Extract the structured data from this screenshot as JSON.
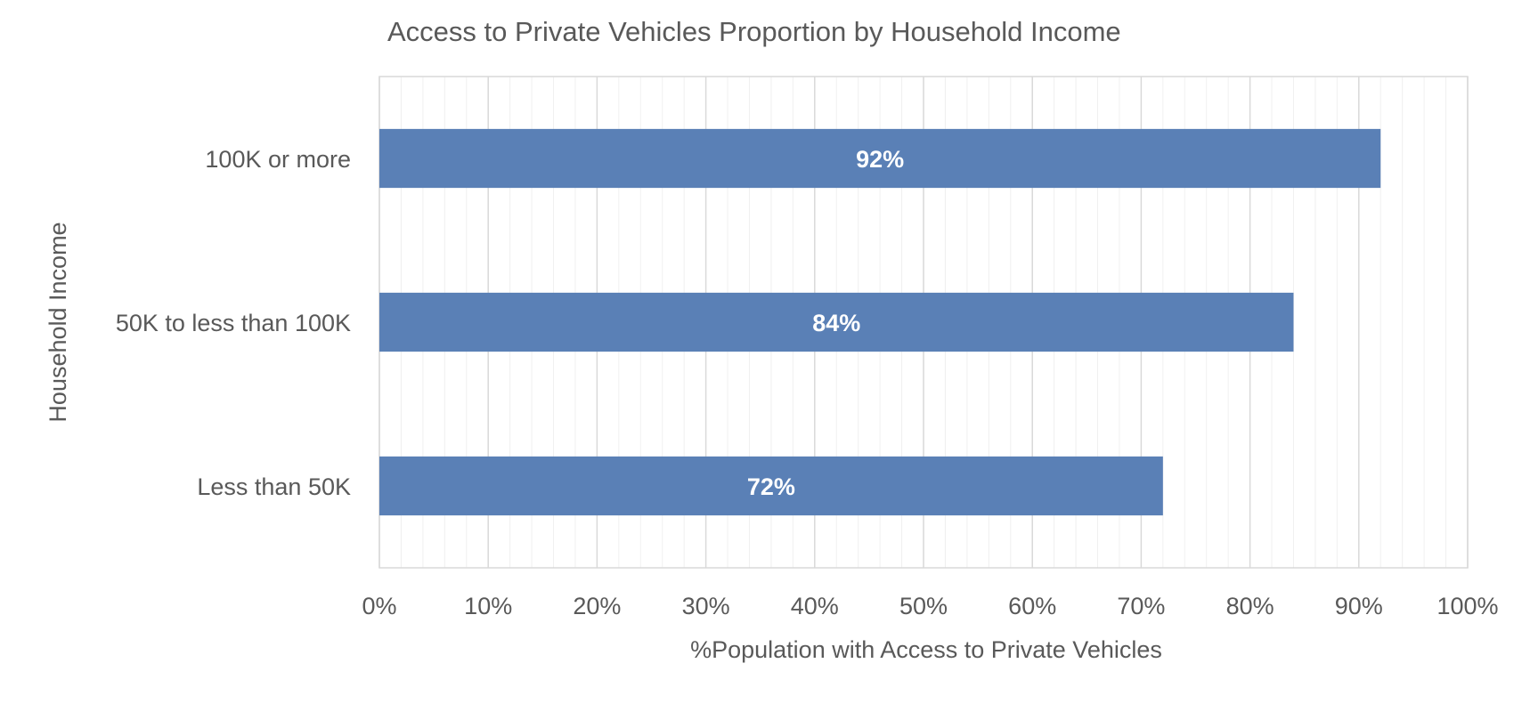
{
  "chart_data": {
    "type": "bar",
    "orientation": "horizontal",
    "title": "Access to Private Vehicles Proportion by Household Income",
    "xlabel": "%Population with Access to Private Vehicles",
    "ylabel": "Household Income",
    "categories": [
      "100K or more",
      "50K to less than 100K",
      "Less than 50K"
    ],
    "values": [
      92,
      84,
      72
    ],
    "data_labels": [
      "92%",
      "84%",
      "72%"
    ],
    "xlim": [
      0,
      100
    ],
    "x_ticks": [
      0,
      10,
      20,
      30,
      40,
      50,
      60,
      70,
      80,
      90,
      100
    ],
    "x_tick_labels": [
      "0%",
      "10%",
      "20%",
      "30%",
      "40%",
      "50%",
      "60%",
      "70%",
      "80%",
      "90%",
      "100%"
    ],
    "grid": true,
    "minor_grid": true,
    "legend": "none",
    "colors": {
      "bar": "#5a80b6",
      "bar_label": "#ffffff",
      "text": "#595959",
      "major_grid": "#d9d9d9",
      "minor_grid": "#f0f0f0",
      "plot_border": "#d9d9d9"
    }
  }
}
